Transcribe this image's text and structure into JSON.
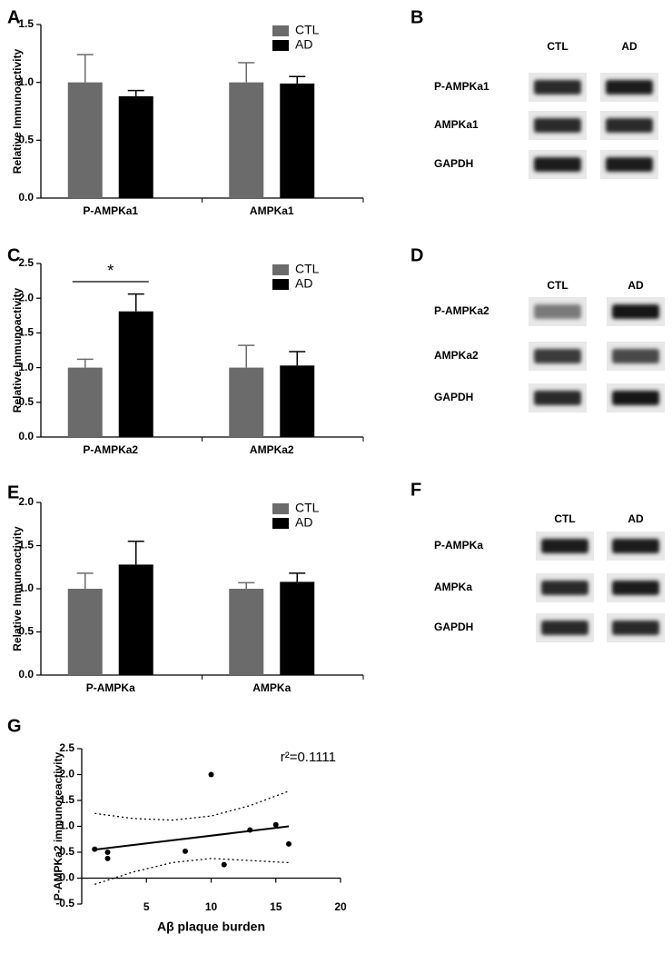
{
  "chart_data": [
    {
      "type": "bar",
      "panel": "A",
      "ylabel": "Relative Immunoactivity",
      "categories": [
        "P-AMPKa1",
        "AMPKa1"
      ],
      "series": [
        {
          "name": "CTL",
          "color": "#6b6b6b",
          "values": [
            1.0,
            1.0
          ],
          "errors": [
            0.24,
            0.17
          ]
        },
        {
          "name": "AD",
          "color": "#000000",
          "values": [
            0.88,
            0.99
          ],
          "errors": [
            0.05,
            0.06
          ]
        }
      ],
      "ylim": [
        0,
        1.5
      ],
      "yticks": [
        {
          "value": 0,
          "label": "0.0"
        },
        0.5,
        {
          "value": 1,
          "label": "1.0"
        },
        1.5
      ],
      "legend": "upper right"
    },
    {
      "type": "bar",
      "panel": "C",
      "ylabel": "Relative Immunoactivity",
      "categories": [
        "P-AMPKa2",
        "AMPKa2"
      ],
      "series": [
        {
          "name": "CTL",
          "color": "#6b6b6b",
          "values": [
            1.0,
            1.0
          ],
          "errors": [
            0.12,
            0.32
          ]
        },
        {
          "name": "AD",
          "color": "#000000",
          "values": [
            1.81,
            1.03
          ],
          "errors": [
            0.25,
            0.2
          ]
        }
      ],
      "ylim": [
        0,
        2.5
      ],
      "yticks": [
        {
          "value": 0,
          "label": "0.0"
        },
        0.5,
        {
          "value": 1,
          "label": "1.0"
        },
        1.5,
        {
          "value": 2,
          "label": "2.0"
        },
        2.5
      ],
      "annotation": "*",
      "legend": "upper right"
    },
    {
      "type": "bar",
      "panel": "E",
      "ylabel": "Relative Immunoactivity",
      "categories": [
        "P-AMPKa",
        "AMPKa"
      ],
      "series": [
        {
          "name": "CTL",
          "color": "#6b6b6b",
          "values": [
            1.0,
            1.0
          ],
          "errors": [
            0.18,
            0.07
          ]
        },
        {
          "name": "AD",
          "color": "#000000",
          "values": [
            1.28,
            1.08
          ],
          "errors": [
            0.27,
            0.1
          ]
        }
      ],
      "ylim": [
        0,
        2
      ],
      "yticks": [
        {
          "value": 0,
          "label": "0.0"
        },
        0.5,
        {
          "value": 1,
          "label": "1.0"
        },
        1.5,
        {
          "value": 2,
          "label": "2.0"
        }
      ],
      "legend": "upper right"
    },
    {
      "type": "scatter",
      "panel": "G",
      "ylabel": "P-AMPKa2 immunoreactivity",
      "xlabel": "Aβ plaque burden",
      "annotation": "r²=0.1111",
      "points": {
        "x": [
          1,
          2,
          2,
          8,
          10,
          11,
          13,
          15,
          16
        ],
        "values": [
          0.56,
          0.5,
          0.38,
          0.52,
          2.0,
          0.26,
          0.93,
          1.03,
          0.66
        ]
      },
      "fit": {
        "x": [
          1,
          16
        ],
        "values": [
          0.55,
          1.0
        ]
      },
      "band": {
        "x": [
          1,
          4,
          7,
          10,
          13,
          16
        ],
        "upper": [
          1.25,
          1.15,
          1.12,
          1.2,
          1.4,
          1.68
        ],
        "lower": [
          -0.12,
          0.12,
          0.3,
          0.38,
          0.34,
          0.3
        ]
      },
      "xlim": [
        0,
        20
      ],
      "xticks": [
        5,
        10,
        15,
        20
      ],
      "ylim": [
        -0.5,
        2.5
      ],
      "yticks": [
        -0.5,
        {
          "value": 0,
          "label": "0.0"
        },
        0.5,
        {
          "value": 1,
          "label": "1.0"
        },
        1.5,
        {
          "value": 2,
          "label": "2.0"
        },
        2.5
      ]
    }
  ],
  "blots": [
    {
      "panel": "B",
      "columns": [
        "CTL",
        "AD"
      ],
      "rows": [
        "P-AMPKa1",
        "AMPKa1",
        "GAPDH"
      ]
    },
    {
      "panel": "D",
      "columns": [
        "CTL",
        "AD"
      ],
      "rows": [
        "P-AMPKa2",
        "AMPKa2",
        "GAPDH"
      ]
    },
    {
      "panel": "F",
      "columns": [
        "CTL",
        "AD"
      ],
      "rows": [
        "P-AMPKa",
        "AMPKa",
        "GAPDH"
      ]
    }
  ]
}
